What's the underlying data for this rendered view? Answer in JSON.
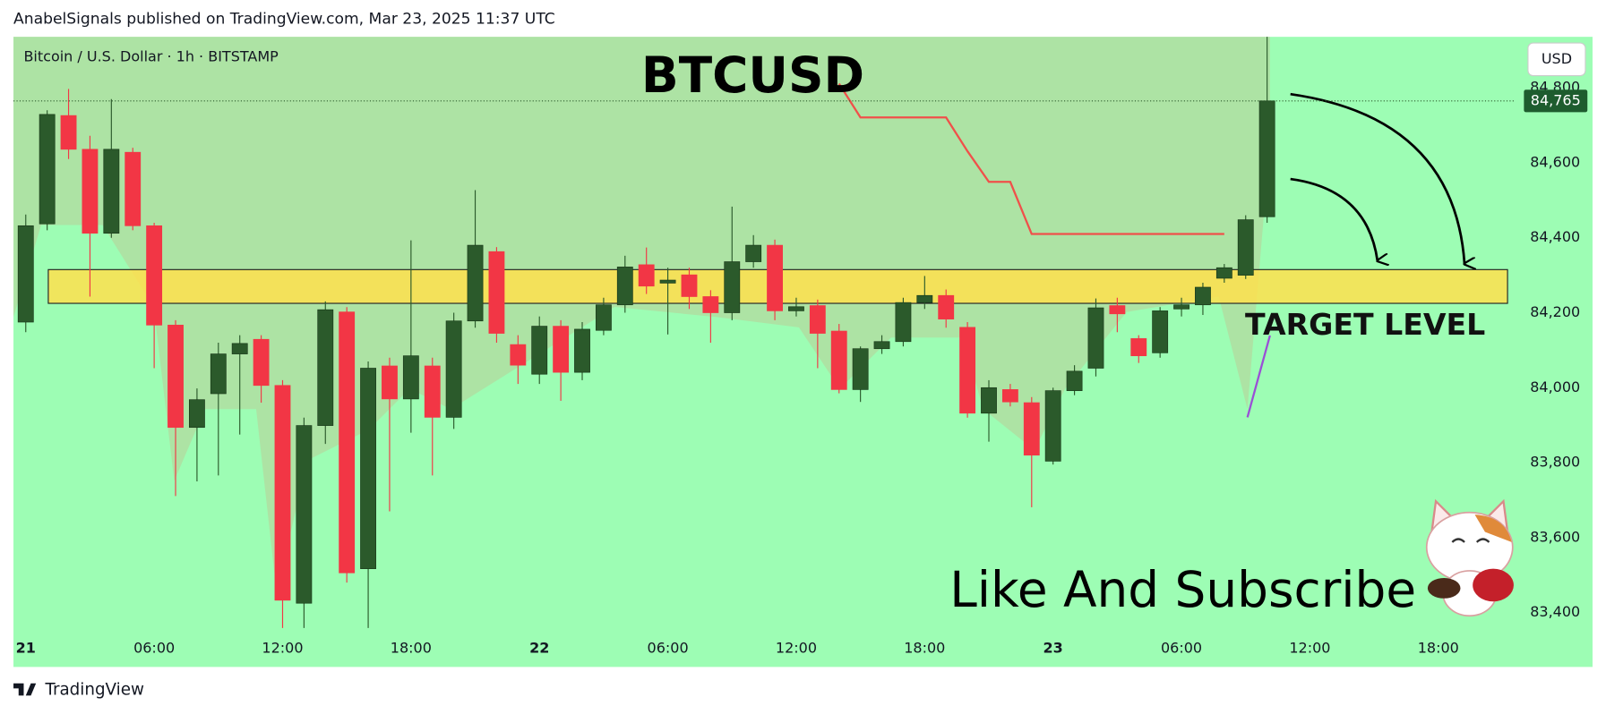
{
  "chart_data": {
    "type": "candlestick",
    "publisher": "AnabelSignals published on TradingView.com, Mar 23, 2025 11:37 UTC",
    "subtitle": "Bitcoin / U.S. Dollar · 1h · BITSTAMP",
    "title": "BTCUSD",
    "annotations": [
      "TARGET LEVEL",
      "Like And Subscribe"
    ],
    "currency": "USD",
    "brand": "TradingView",
    "categories": [
      "21",
      null,
      null,
      null,
      null,
      null,
      "06:00",
      null,
      null,
      null,
      null,
      null,
      "12:00",
      null,
      null,
      null,
      null,
      null,
      "18:00",
      null,
      null,
      null,
      null,
      null,
      "22",
      null,
      null,
      null,
      null,
      null,
      "06:00",
      null,
      null,
      null,
      null,
      null,
      "12:00",
      null,
      null,
      null,
      null,
      null,
      "18:00",
      null,
      null,
      null,
      null,
      null,
      "23",
      null,
      null,
      null,
      null,
      null,
      "06:00",
      null,
      null,
      null,
      null,
      null,
      "12:00",
      null,
      null,
      null,
      null,
      null,
      "18:00",
      null,
      null,
      null
    ],
    "open": [
      84175,
      84437,
      84726,
      84636,
      84412,
      84628,
      84432,
      84167,
      83894,
      83984,
      84090,
      84129,
      84006,
      83425,
      83899,
      84202,
      83517,
      84058,
      83970,
      84058,
      83921,
      84178,
      84363,
      84115,
      84036,
      84164,
      84041,
      84153,
      84221,
      84328,
      84279,
      84301,
      84243,
      84200,
      84336,
      84380,
      84205,
      84219,
      84151,
      83995,
      84104,
      84123,
      84227,
      84246,
      84161,
      83932,
      83995,
      83960,
      83804,
      83992,
      84052,
      84219,
      84131,
      84093,
      84210,
      84221,
      84292,
      84300,
      84456,
      null,
      null,
      null,
      null,
      null,
      null,
      null,
      null,
      null,
      null,
      null
    ],
    "high": [
      84462,
      84740,
      84797,
      84672,
      84770,
      84640,
      84440,
      84180,
      83998,
      84120,
      84140,
      84140,
      84020,
      83920,
      84230,
      84215,
      84070,
      84080,
      84393,
      84080,
      84200,
      84527,
      84375,
      84140,
      84190,
      84180,
      84175,
      84240,
      84352,
      84374,
      84320,
      84320,
      84260,
      84483,
      84407,
      84395,
      84240,
      84235,
      84170,
      84110,
      84140,
      84240,
      84298,
      84262,
      84175,
      84020,
      84010,
      83975,
      84000,
      84060,
      84238,
      84240,
      84140,
      84215,
      84240,
      84280,
      84330,
      84460,
      84936,
      null,
      null,
      null,
      null,
      null,
      null,
      null,
      null,
      null,
      null,
      null
    ],
    "low": [
      84148,
      84420,
      84610,
      84243,
      84400,
      84420,
      84052,
      83711,
      83750,
      83766,
      83875,
      83960,
      83359,
      83359,
      83850,
      83480,
      83359,
      83670,
      83880,
      83766,
      83890,
      84160,
      84120,
      84010,
      84010,
      83965,
      84020,
      84140,
      84200,
      84250,
      84142,
      84210,
      84120,
      84180,
      84320,
      84180,
      84190,
      84052,
      83985,
      83962,
      84090,
      84110,
      84210,
      84160,
      83920,
      83856,
      83950,
      83681,
      83795,
      83980,
      84030,
      84148,
      84066,
      84080,
      84190,
      84194,
      84280,
      84290,
      84440,
      null,
      null,
      null,
      null,
      null,
      null,
      null,
      null,
      null,
      null,
      null
    ],
    "close": [
      84432,
      84729,
      84636,
      84412,
      84636,
      84432,
      84167,
      83894,
      83968,
      84090,
      84118,
      84006,
      83433,
      83899,
      84208,
      83506,
      84052,
      83970,
      84085,
      83921,
      84178,
      84380,
      84145,
      84060,
      84164,
      84041,
      84156,
      84221,
      84322,
      84271,
      84287,
      84243,
      84200,
      84336,
      84380,
      84205,
      84216,
      84145,
      83995,
      84104,
      84123,
      84227,
      84246,
      84183,
      83932,
      84000,
      83962,
      83820,
      83992,
      84044,
      84213,
      84197,
      84085,
      84205,
      84221,
      84268,
      84320,
      84448,
      84765,
      null,
      null,
      null,
      null,
      null,
      null,
      null,
      null,
      null,
      null,
      null
    ],
    "up_color": "#2b5a2b",
    "down_color": "#f23645",
    "stop_line": {
      "color": "#f0504a",
      "values": [
        null,
        null,
        null,
        null,
        null,
        null,
        null,
        null,
        null,
        null,
        null,
        null,
        null,
        null,
        null,
        null,
        null,
        null,
        null,
        null,
        null,
        null,
        null,
        null,
        null,
        null,
        null,
        null,
        null,
        null,
        null,
        null,
        null,
        null,
        null,
        null,
        null,
        null,
        84811,
        84721,
        84721,
        84721,
        84721,
        84721,
        84631,
        84549,
        84549,
        84410,
        84410,
        84410,
        84410,
        84410,
        84410,
        84410,
        84410,
        84410,
        84410,
        null,
        null,
        null,
        null,
        null,
        null,
        null,
        null,
        null,
        null,
        null,
        null,
        null
      ]
    },
    "target_zone": {
      "range": [
        84225,
        84315
      ],
      "color": "#ffe14d"
    },
    "last_price": {
      "value": 84765,
      "label": "84,765"
    },
    "ylim": [
      83255,
      84936
    ],
    "yticks": [
      {
        "value": 83400,
        "label": "83,400"
      },
      {
        "value": 83600,
        "label": "83,600"
      },
      {
        "value": 83800,
        "label": "83,800"
      },
      {
        "value": 84000,
        "label": "84,000"
      },
      {
        "value": 84200,
        "label": "84,200"
      },
      {
        "value": 84400,
        "label": "84,400"
      },
      {
        "value": 84600,
        "label": "84,600"
      },
      {
        "value": 84800,
        "label": "84,800"
      }
    ]
  }
}
